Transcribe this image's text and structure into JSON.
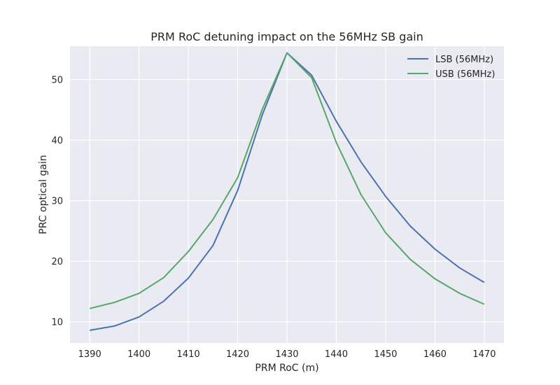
{
  "chart_data": {
    "type": "line",
    "title": "PRM RoC detuning impact on the 56MHz SB gain",
    "xlabel": "PRM RoC (m)",
    "ylabel": "PRC optical gain",
    "xlim": [
      1386,
      1474
    ],
    "ylim": [
      6.5,
      55.5
    ],
    "x_ticks": [
      1390,
      1400,
      1410,
      1420,
      1430,
      1440,
      1450,
      1460,
      1470
    ],
    "y_ticks": [
      10,
      20,
      30,
      40,
      50
    ],
    "grid": true,
    "legend_position": "top-right",
    "x": [
      1390,
      1395,
      1400,
      1405,
      1410,
      1415,
      1420,
      1425,
      1430,
      1435,
      1440,
      1445,
      1450,
      1455,
      1460,
      1465,
      1470
    ],
    "series": [
      {
        "name": "LSB (56MHz)",
        "color": "#4c72b0",
        "values": [
          8.6,
          9.3,
          10.8,
          13.4,
          17.2,
          22.6,
          31.7,
          44.2,
          54.4,
          50.7,
          43.1,
          36.4,
          30.7,
          25.8,
          22.0,
          18.9,
          16.5
        ]
      },
      {
        "name": "USB (56MHz)",
        "color": "#55a868",
        "values": [
          12.2,
          13.2,
          14.7,
          17.3,
          21.6,
          26.9,
          33.8,
          45.1,
          54.4,
          50.3,
          39.6,
          31.0,
          24.7,
          20.3,
          17.1,
          14.7,
          12.9
        ]
      }
    ]
  }
}
